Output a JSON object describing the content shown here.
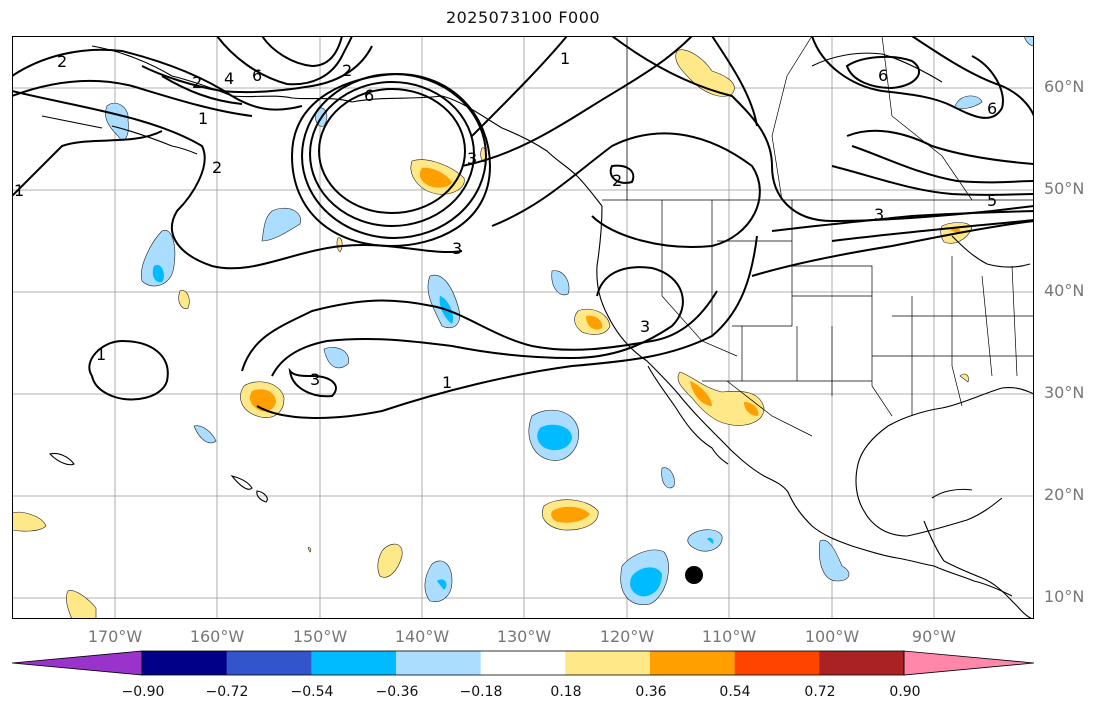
{
  "title": "2025073100 F000",
  "lat_labels": [
    "60°N",
    "50°N",
    "40°N",
    "30°N",
    "20°N",
    "10°N"
  ],
  "lon_labels": [
    "170°W",
    "160°W",
    "150°W",
    "140°W",
    "130°W",
    "120°W",
    "110°W",
    "100°W",
    "90°W"
  ],
  "colorbar": {
    "colors": [
      "#9933cc",
      "#000088",
      "#3355cc",
      "#00bbff",
      "#aaddff",
      "#ffffff",
      "#ffe888",
      "#ffa000",
      "#ff4400",
      "#aa2222",
      "#ff88aa"
    ],
    "tick_labels": [
      "−0.90",
      "−0.72",
      "−0.54",
      "−0.36",
      "−0.18",
      "0.18",
      "0.36",
      "0.54",
      "0.72",
      "0.90"
    ]
  },
  "contour_labels": [
    "2",
    "2",
    "4",
    "6",
    "6",
    "2",
    "1",
    "1",
    "2",
    "6",
    "6",
    "5",
    "3",
    "2",
    "3",
    "3",
    "3",
    "1",
    "1",
    "3",
    "1"
  ],
  "storm_marker": {
    "lat": 12.2,
    "lon": -113.0
  }
}
